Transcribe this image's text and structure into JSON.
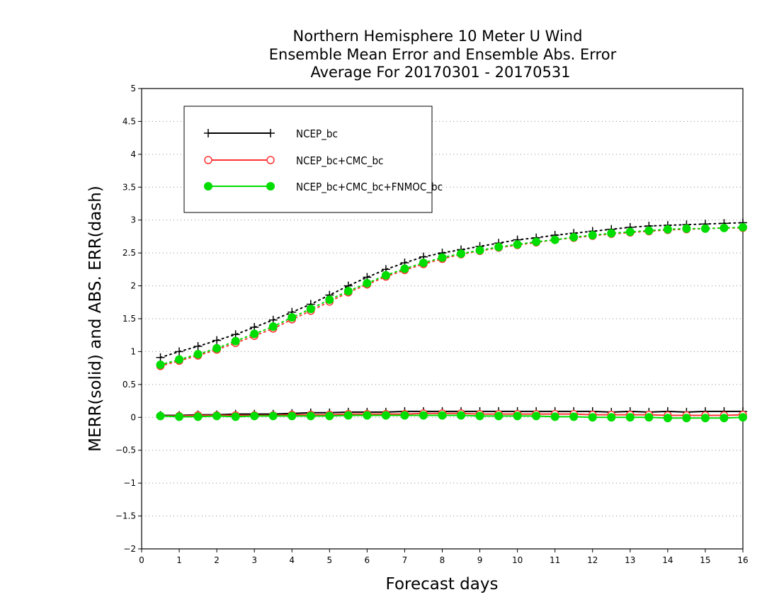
{
  "chart_data": {
    "type": "line",
    "title": [
      "Northern Hemisphere 10 Meter U Wind",
      "Ensemble Mean Error and Ensemble Abs. Error",
      "Average For 20170301 - 20170531"
    ],
    "xlabel": "Forecast days",
    "ylabel": "MERR(solid) and ABS. ERR(dash)",
    "xlim": [
      0,
      16
    ],
    "ylim": [
      -2,
      5
    ],
    "x_ticks": [
      "0",
      "1",
      "2",
      "3",
      "4",
      "5",
      "6",
      "7",
      "8",
      "9",
      "10",
      "11",
      "12",
      "13",
      "14",
      "15",
      "16"
    ],
    "y_ticks": [
      "5",
      "4.5",
      "4",
      "3.5",
      "3",
      "2.5",
      "2",
      "1.5",
      "1",
      "0.5",
      "0",
      "−0.5",
      "−1",
      "−1.5",
      "−2"
    ],
    "grid": true,
    "legend_position": "top-left",
    "x": [
      0.5,
      1,
      1.5,
      2,
      2.5,
      3,
      3.5,
      4,
      4.5,
      5,
      5.5,
      6,
      6.5,
      7,
      7.5,
      8,
      8.5,
      9,
      9.5,
      10,
      10.5,
      11,
      11.5,
      12,
      12.5,
      13,
      13.5,
      14,
      14.5,
      15,
      15.5,
      16
    ],
    "series": [
      {
        "name": "NCEP_bc",
        "color": "#000000",
        "marker": "plus",
        "merr": [
          0.03,
          0.03,
          0.04,
          0.04,
          0.05,
          0.05,
          0.05,
          0.06,
          0.07,
          0.07,
          0.08,
          0.08,
          0.08,
          0.09,
          0.09,
          0.09,
          0.09,
          0.09,
          0.09,
          0.09,
          0.09,
          0.09,
          0.09,
          0.09,
          0.08,
          0.09,
          0.08,
          0.09,
          0.08,
          0.09,
          0.09,
          0.09
        ],
        "abs_err": [
          0.91,
          1.0,
          1.08,
          1.17,
          1.26,
          1.37,
          1.48,
          1.6,
          1.72,
          1.86,
          2.0,
          2.13,
          2.25,
          2.35,
          2.44,
          2.5,
          2.55,
          2.6,
          2.65,
          2.7,
          2.73,
          2.77,
          2.8,
          2.83,
          2.86,
          2.89,
          2.91,
          2.92,
          2.93,
          2.94,
          2.95,
          2.96
        ]
      },
      {
        "name": "NCEP_bc+CMC_bc",
        "color": "#ff3333",
        "marker": "open-circle",
        "merr": [
          0.02,
          0.02,
          0.03,
          0.03,
          0.03,
          0.03,
          0.03,
          0.04,
          0.04,
          0.04,
          0.05,
          0.05,
          0.05,
          0.05,
          0.06,
          0.06,
          0.06,
          0.05,
          0.05,
          0.05,
          0.05,
          0.05,
          0.05,
          0.04,
          0.04,
          0.04,
          0.04,
          0.03,
          0.03,
          0.03,
          0.03,
          0.04
        ],
        "abs_err": [
          0.78,
          0.86,
          0.94,
          1.03,
          1.13,
          1.24,
          1.35,
          1.49,
          1.62,
          1.76,
          1.9,
          2.02,
          2.14,
          2.24,
          2.33,
          2.41,
          2.48,
          2.53,
          2.58,
          2.62,
          2.66,
          2.7,
          2.73,
          2.76,
          2.79,
          2.81,
          2.83,
          2.85,
          2.86,
          2.87,
          2.88,
          2.88
        ]
      },
      {
        "name": "NCEP_bc+CMC_bc+FNMOC_bc",
        "color": "#00dd00",
        "marker": "filled-circle",
        "merr": [
          0.02,
          0.01,
          0.01,
          0.02,
          0.01,
          0.02,
          0.02,
          0.02,
          0.02,
          0.02,
          0.03,
          0.03,
          0.03,
          0.03,
          0.03,
          0.03,
          0.03,
          0.02,
          0.02,
          0.02,
          0.02,
          0.01,
          0.01,
          0.0,
          0.0,
          0.0,
          0.0,
          -0.01,
          -0.01,
          -0.01,
          -0.01,
          0.0
        ],
        "abs_err": [
          0.8,
          0.88,
          0.96,
          1.05,
          1.16,
          1.27,
          1.38,
          1.52,
          1.65,
          1.79,
          1.92,
          2.04,
          2.16,
          2.26,
          2.35,
          2.43,
          2.49,
          2.54,
          2.59,
          2.63,
          2.67,
          2.7,
          2.74,
          2.77,
          2.8,
          2.82,
          2.84,
          2.86,
          2.87,
          2.87,
          2.88,
          2.89
        ]
      }
    ]
  }
}
